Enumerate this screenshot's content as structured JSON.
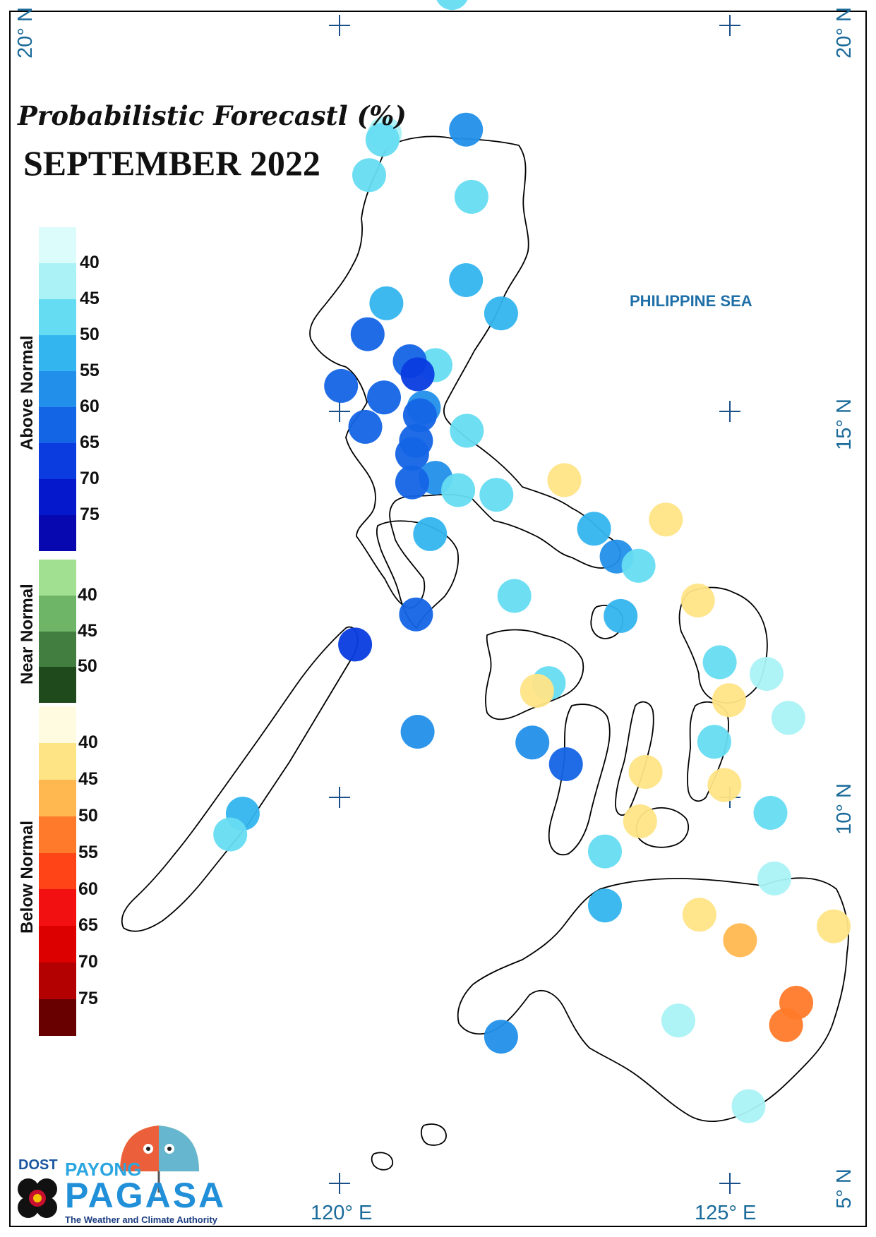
{
  "title_line1": "Probabilistic Forecastl (%)",
  "title_line2": "SEPTEMBER 2022",
  "sea_label": "PHILIPPINE SEA",
  "coords": {
    "lat20_left": "20° N",
    "lat20_right": "20° N",
    "lat15": "15° N",
    "lat10": "10° N",
    "lat5": "5° N",
    "lon120": "120° E",
    "lon125": "125° E"
  },
  "legend": {
    "above": {
      "label": "Above Normal",
      "colors": [
        "#dcfbfb",
        "#aaf2f5",
        "#66dcf2",
        "#33b5ef",
        "#2290ea",
        "#1464e6",
        "#0a3ce0",
        "#0518cc",
        "#0808b0"
      ],
      "ticks": [
        "40",
        "45",
        "50",
        "55",
        "60",
        "65",
        "70",
        "75"
      ]
    },
    "near": {
      "label": "Near Normal",
      "colors": [
        "#a0e090",
        "#6fb567",
        "#417e40",
        "#1f4a1c"
      ],
      "ticks": [
        "40",
        "45",
        "50"
      ]
    },
    "below": {
      "label": "Below Normal",
      "colors": [
        "#fffbe0",
        "#ffe486",
        "#ffb850",
        "#ff7a2a",
        "#ff4418",
        "#f21010",
        "#dd0000",
        "#b30000",
        "#680000"
      ],
      "ticks": [
        "40",
        "45",
        "50",
        "55",
        "60",
        "65",
        "70",
        "75"
      ]
    }
  },
  "stations": [
    {
      "lon": 121.44,
      "lat": 20.42,
      "category": "above",
      "prob": 45
    },
    {
      "lon": 120.58,
      "lat": 18.6,
      "category": "above",
      "prob": 40
    },
    {
      "lon": 120.55,
      "lat": 18.52,
      "category": "above",
      "prob": 45
    },
    {
      "lon": 121.62,
      "lat": 18.65,
      "category": "above",
      "prob": 55
    },
    {
      "lon": 120.38,
      "lat": 18.06,
      "category": "above",
      "prob": 45
    },
    {
      "lon": 121.69,
      "lat": 17.78,
      "category": "above",
      "prob": 45
    },
    {
      "lon": 121.62,
      "lat": 16.7,
      "category": "above",
      "prob": 50
    },
    {
      "lon": 120.6,
      "lat": 16.4,
      "category": "above",
      "prob": 50
    },
    {
      "lon": 122.07,
      "lat": 16.27,
      "category": "above",
      "prob": 50
    },
    {
      "lon": 120.36,
      "lat": 16.0,
      "category": "above",
      "prob": 60
    },
    {
      "lon": 121.23,
      "lat": 15.6,
      "category": "above",
      "prob": 45
    },
    {
      "lon": 120.9,
      "lat": 15.65,
      "category": "above",
      "prob": 60
    },
    {
      "lon": 121.0,
      "lat": 15.48,
      "category": "above",
      "prob": 65
    },
    {
      "lon": 120.02,
      "lat": 15.33,
      "category": "above",
      "prob": 60
    },
    {
      "lon": 120.57,
      "lat": 15.18,
      "category": "above",
      "prob": 60
    },
    {
      "lon": 121.08,
      "lat": 15.05,
      "category": "above",
      "prob": 55
    },
    {
      "lon": 121.03,
      "lat": 14.95,
      "category": "above",
      "prob": 60
    },
    {
      "lon": 120.33,
      "lat": 14.8,
      "category": "above",
      "prob": 60
    },
    {
      "lon": 121.63,
      "lat": 14.75,
      "category": "above",
      "prob": 45
    },
    {
      "lon": 120.98,
      "lat": 14.62,
      "category": "above",
      "prob": 60
    },
    {
      "lon": 120.93,
      "lat": 14.45,
      "category": "above",
      "prob": 60
    },
    {
      "lon": 121.23,
      "lat": 14.14,
      "category": "above",
      "prob": 55
    },
    {
      "lon": 120.93,
      "lat": 14.08,
      "category": "above",
      "prob": 60
    },
    {
      "lon": 121.52,
      "lat": 13.98,
      "category": "above",
      "prob": 45
    },
    {
      "lon": 122.01,
      "lat": 13.92,
      "category": "above",
      "prob": 45
    },
    {
      "lon": 122.88,
      "lat": 14.11,
      "category": "below",
      "prob": 40
    },
    {
      "lon": 124.18,
      "lat": 13.6,
      "category": "below",
      "prob": 40
    },
    {
      "lon": 121.16,
      "lat": 13.41,
      "category": "above",
      "prob": 50
    },
    {
      "lon": 123.26,
      "lat": 13.48,
      "category": "above",
      "prob": 50
    },
    {
      "lon": 123.55,
      "lat": 13.12,
      "category": "above",
      "prob": 55
    },
    {
      "lon": 123.83,
      "lat": 13.0,
      "category": "above",
      "prob": 45
    },
    {
      "lon": 120.98,
      "lat": 12.37,
      "category": "above",
      "prob": 60
    },
    {
      "lon": 122.24,
      "lat": 12.61,
      "category": "above",
      "prob": 45
    },
    {
      "lon": 124.59,
      "lat": 12.55,
      "category": "below",
      "prob": 40
    },
    {
      "lon": 123.6,
      "lat": 12.35,
      "category": "above",
      "prob": 50
    },
    {
      "lon": 120.2,
      "lat": 11.98,
      "category": "above",
      "prob": 65
    },
    {
      "lon": 124.87,
      "lat": 11.75,
      "category": "above",
      "prob": 45
    },
    {
      "lon": 125.47,
      "lat": 11.6,
      "category": "above",
      "prob": 40
    },
    {
      "lon": 122.68,
      "lat": 11.48,
      "category": "above",
      "prob": 45
    },
    {
      "lon": 122.53,
      "lat": 11.38,
      "category": "below",
      "prob": 40
    },
    {
      "lon": 124.99,
      "lat": 11.26,
      "category": "below",
      "prob": 40
    },
    {
      "lon": 125.75,
      "lat": 11.03,
      "category": "above",
      "prob": 40
    },
    {
      "lon": 121.0,
      "lat": 10.85,
      "category": "above",
      "prob": 55
    },
    {
      "lon": 122.47,
      "lat": 10.71,
      "category": "above",
      "prob": 55
    },
    {
      "lon": 124.8,
      "lat": 10.72,
      "category": "above",
      "prob": 45
    },
    {
      "lon": 122.9,
      "lat": 10.43,
      "category": "above",
      "prob": 60
    },
    {
      "lon": 123.92,
      "lat": 10.33,
      "category": "below",
      "prob": 40
    },
    {
      "lon": 124.93,
      "lat": 10.16,
      "category": "below",
      "prob": 40
    },
    {
      "lon": 118.76,
      "lat": 9.79,
      "category": "above",
      "prob": 50
    },
    {
      "lon": 118.6,
      "lat": 9.52,
      "category": "above",
      "prob": 45
    },
    {
      "lon": 125.52,
      "lat": 9.8,
      "category": "above",
      "prob": 45
    },
    {
      "lon": 123.85,
      "lat": 9.69,
      "category": "below",
      "prob": 40
    },
    {
      "lon": 123.4,
      "lat": 9.3,
      "category": "above",
      "prob": 45
    },
    {
      "lon": 125.57,
      "lat": 8.95,
      "category": "above",
      "prob": 40
    },
    {
      "lon": 123.4,
      "lat": 8.6,
      "category": "above",
      "prob": 50
    },
    {
      "lon": 124.61,
      "lat": 8.48,
      "category": "below",
      "prob": 40
    },
    {
      "lon": 126.33,
      "lat": 8.33,
      "category": "below",
      "prob": 40
    },
    {
      "lon": 125.13,
      "lat": 8.15,
      "category": "below",
      "prob": 45
    },
    {
      "lon": 125.85,
      "lat": 7.34,
      "category": "below",
      "prob": 50
    },
    {
      "lon": 125.72,
      "lat": 7.05,
      "category": "below",
      "prob": 50
    },
    {
      "lon": 124.34,
      "lat": 7.11,
      "category": "above",
      "prob": 40
    },
    {
      "lon": 122.07,
      "lat": 6.9,
      "category": "above",
      "prob": 55
    },
    {
      "lon": 125.24,
      "lat": 6.0,
      "category": "above",
      "prob": 40
    }
  ]
}
